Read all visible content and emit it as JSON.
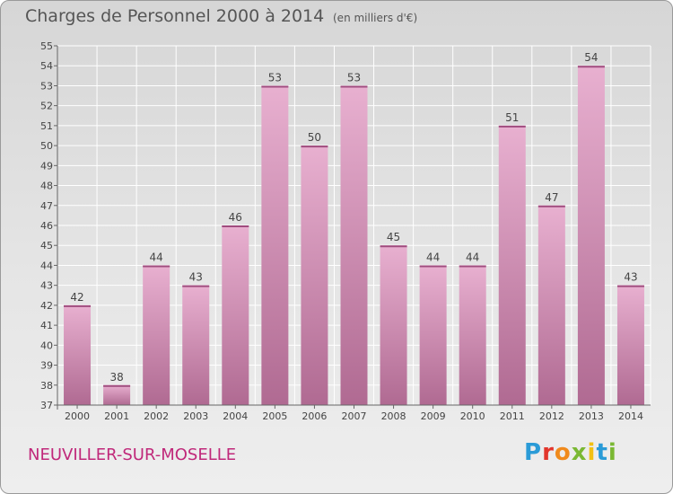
{
  "header": {
    "title": "Charges de Personnel 2000 à 2014",
    "subtitle": "(en milliers d'€)"
  },
  "footer": {
    "city": "NEUVILLER-SUR-MOSELLE",
    "logo": "Proxiti"
  },
  "colors": {
    "bar_top": "#e8b0d0",
    "bar_bottom": "#b06a92",
    "city_text": "#c0287a"
  },
  "chart_data": {
    "type": "bar",
    "title": "Charges de Personnel 2000 à 2014",
    "subtitle": "(en milliers d'€)",
    "categories": [
      "2000",
      "2001",
      "2002",
      "2003",
      "2004",
      "2005",
      "2006",
      "2007",
      "2008",
      "2009",
      "2010",
      "2011",
      "2012",
      "2013",
      "2014"
    ],
    "values": [
      42,
      38,
      44,
      43,
      46,
      53,
      50,
      53,
      45,
      44,
      44,
      51,
      47,
      54,
      43
    ],
    "ylim": [
      37,
      55
    ],
    "yticks": [
      37,
      38,
      39,
      40,
      41,
      42,
      43,
      44,
      45,
      46,
      47,
      48,
      49,
      50,
      51,
      52,
      53,
      54,
      55
    ],
    "grid": true,
    "data_labels": true
  }
}
